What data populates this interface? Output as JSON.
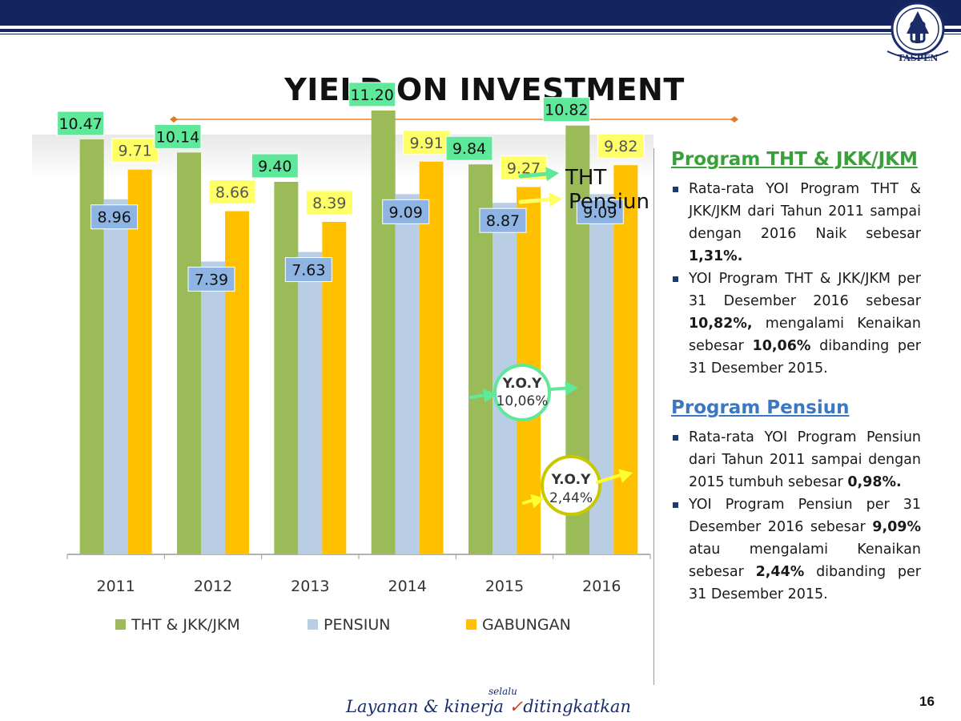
{
  "slide": {
    "title": "YIELD ON INVESTMENT",
    "page_number": "16",
    "logo_text": "TASPEN",
    "footer": {
      "main": "Layanan & kinerja",
      "accent": "selalu",
      "tail": "ditingkatkan"
    }
  },
  "annotations": {
    "tht_arrow_label": "THT",
    "pensiun_arrow_label": "Pensiun",
    "yoy_tht": {
      "label": "Y.O.Y",
      "value": "10,06%"
    },
    "yoy_pensiun": {
      "label": "Y.O.Y",
      "value": "2,44%"
    }
  },
  "colors": {
    "tht": "#9bbb59",
    "pensiun": "#b9cde5",
    "gabungan": "#ffc000",
    "tht_label_bg": "#5ee89a",
    "pensiun_label_bg": "#8eb4e3",
    "gabungan_label_bg": "#ffff66",
    "yoy_tht_ring": "#5ee89a",
    "yoy_pensiun_ring": "#c8c800",
    "yoy_tht_arrow": "#5ee89a",
    "yoy_pensiun_arrow": "#ffff33",
    "header_navy": "#14245e",
    "heading_green": "#3aa13a",
    "heading_blue": "#3a78c2"
  },
  "chart_data": {
    "type": "bar",
    "categories": [
      "2011",
      "2012",
      "2013",
      "2014",
      "2015",
      "2016"
    ],
    "series": [
      {
        "name": "THT & JKK/JKM",
        "values": [
          10.47,
          10.14,
          9.4,
          11.2,
          9.84,
          10.82
        ],
        "labels": [
          "10.47",
          "10.14",
          "9.40",
          "11.20",
          "9.84",
          "10.82"
        ]
      },
      {
        "name": "PENSIUN",
        "values": [
          8.96,
          7.39,
          7.63,
          9.09,
          8.87,
          9.09
        ],
        "labels": [
          "8.96",
          "7.39",
          "7.63",
          "9.09",
          "8.87",
          "9.09"
        ]
      },
      {
        "name": "GABUNGAN",
        "values": [
          9.71,
          8.66,
          8.39,
          9.91,
          9.27,
          9.82
        ],
        "labels": [
          "9.71",
          "8.66",
          "8.39",
          "9.91",
          "9.27",
          "9.82"
        ]
      }
    ],
    "ylim": [
      0,
      12
    ],
    "legend_position": "bottom",
    "grid": false,
    "title": "",
    "xlabel": "",
    "ylabel": ""
  },
  "panel": {
    "tht": {
      "heading": "Program THT & JKK/JKM",
      "bullets": [
        {
          "text": "Rata-rata YOI Program THT & JKK/JKM dari Tahun 2011 sampai dengan 2016 Naik sebesar ",
          "bold": "1,31%.",
          "tail": ""
        },
        {
          "text": "YOI Program THT & JKK/JKM per 31 Desember 2016 sebesar ",
          "bold": "10,82%,",
          "tail": " mengalami Kenaikan sebesar ",
          "bold2": "10,06%",
          "tail2": " dibanding per 31 Desember 2015."
        }
      ]
    },
    "pensiun": {
      "heading": "Program Pensiun",
      "bullets": [
        {
          "text": "Rata-rata YOI Program Pensiun dari Tahun 2011 sampai dengan 2015 tumbuh sebesar ",
          "bold": "0,98%.",
          "tail": ""
        },
        {
          "text": "YOI Program Pensiun per 31 Desember 2016 sebesar ",
          "bold": "9,09%",
          "tail": " atau mengalami Kenaikan sebesar ",
          "bold2": "2,44%",
          "tail2": " dibanding per 31 Desember 2015."
        }
      ]
    }
  }
}
